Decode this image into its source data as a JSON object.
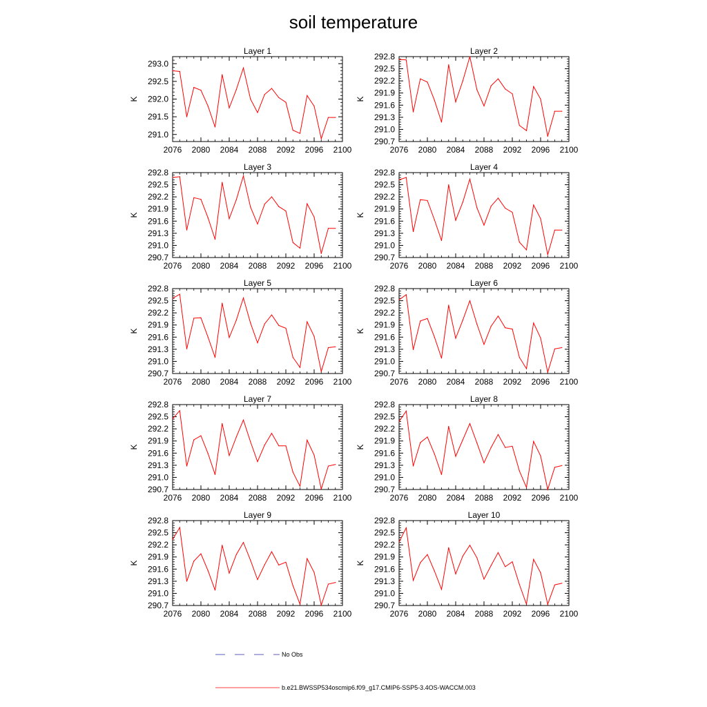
{
  "title": "soil temperature",
  "chart_data": {
    "type": "line",
    "x": [
      2076,
      2077,
      2078,
      2079,
      2080,
      2081,
      2082,
      2083,
      2084,
      2085,
      2086,
      2087,
      2088,
      2089,
      2090,
      2091,
      2092,
      2093,
      2094,
      2095,
      2096,
      2097,
      2098,
      2099
    ],
    "xlim": [
      2076,
      2100
    ],
    "xticks": [
      "2076",
      "2080",
      "2084",
      "2088",
      "2092",
      "2096",
      "2100"
    ],
    "ylabel": "K",
    "series_name": "b.e21.BWSSP534oscmip6.f09_g17.CMIP6-SSP5-3.4OS-WACCM.003",
    "series_color": "#ff0000",
    "obs_label": "No Obs",
    "obs_color": "#2a2aa8",
    "panels": [
      {
        "title": "Layer 1",
        "ylim": [
          290.8,
          293.2
        ],
        "yticks": [
          "291.0",
          "291.5",
          "292.0",
          "292.5",
          "293.0"
        ],
        "values": [
          292.8,
          292.78,
          291.5,
          292.33,
          292.25,
          291.8,
          291.21,
          292.69,
          291.75,
          292.27,
          292.88,
          292.0,
          291.62,
          292.13,
          292.3,
          292.04,
          291.91,
          291.12,
          291.03,
          292.1,
          291.8,
          290.88,
          291.48,
          291.48
        ]
      },
      {
        "title": "Layer 2",
        "ylim": [
          290.7,
          292.8
        ],
        "yticks": [
          "290.7",
          "291.0",
          "291.3",
          "291.6",
          "291.9",
          "292.2",
          "292.5",
          "292.8"
        ],
        "values": [
          292.73,
          292.72,
          291.43,
          292.25,
          292.17,
          291.72,
          291.18,
          292.6,
          291.68,
          292.2,
          292.8,
          291.98,
          291.58,
          292.08,
          292.25,
          292.0,
          291.88,
          291.1,
          290.97,
          292.06,
          291.75,
          290.83,
          291.45,
          291.45
        ]
      },
      {
        "title": "Layer 3",
        "ylim": [
          290.7,
          292.8
        ],
        "yticks": [
          "290.7",
          "291.0",
          "291.3",
          "291.6",
          "291.9",
          "292.2",
          "292.5",
          "292.8"
        ],
        "values": [
          292.68,
          292.7,
          291.38,
          292.18,
          292.14,
          291.68,
          291.15,
          292.56,
          291.66,
          292.13,
          292.72,
          291.95,
          291.53,
          292.02,
          292.2,
          291.96,
          291.85,
          291.07,
          290.93,
          292.03,
          291.7,
          290.8,
          291.42,
          291.42
        ]
      },
      {
        "title": "Layer 4",
        "ylim": [
          290.7,
          292.8
        ],
        "yticks": [
          "290.7",
          "291.0",
          "291.3",
          "291.6",
          "291.9",
          "292.2",
          "292.5",
          "292.8"
        ],
        "values": [
          292.62,
          292.68,
          291.34,
          292.13,
          292.11,
          291.63,
          291.12,
          292.5,
          291.62,
          292.07,
          292.64,
          291.93,
          291.5,
          291.97,
          292.17,
          291.92,
          291.82,
          291.08,
          290.89,
          292.0,
          291.66,
          290.77,
          291.38,
          291.38
        ]
      },
      {
        "title": "Layer 5",
        "ylim": [
          290.7,
          292.8
        ],
        "yticks": [
          "290.7",
          "291.0",
          "291.3",
          "291.6",
          "291.9",
          "292.2",
          "292.5",
          "292.8"
        ],
        "values": [
          292.56,
          292.66,
          291.31,
          292.07,
          292.08,
          291.6,
          291.1,
          292.44,
          291.59,
          292.02,
          292.57,
          291.95,
          291.46,
          291.93,
          292.15,
          291.89,
          291.82,
          291.1,
          290.85,
          291.98,
          291.62,
          290.75,
          291.34,
          291.36
        ]
      },
      {
        "title": "Layer 6",
        "ylim": [
          290.7,
          292.8
        ],
        "yticks": [
          "290.7",
          "291.0",
          "291.3",
          "291.6",
          "291.9",
          "292.2",
          "292.5",
          "292.8"
        ],
        "values": [
          292.52,
          292.65,
          291.29,
          292.0,
          292.06,
          291.6,
          291.08,
          292.39,
          291.57,
          292.02,
          292.5,
          291.92,
          291.42,
          291.87,
          292.12,
          291.83,
          291.8,
          291.1,
          290.82,
          291.95,
          291.58,
          290.73,
          291.31,
          291.34
        ]
      },
      {
        "title": "Layer 7",
        "ylim": [
          290.7,
          292.8
        ],
        "yticks": [
          "290.7",
          "291.0",
          "291.3",
          "291.6",
          "291.9",
          "292.2",
          "292.5",
          "292.8"
        ],
        "values": [
          292.45,
          292.65,
          291.28,
          291.93,
          292.03,
          291.59,
          291.07,
          292.33,
          291.54,
          292.0,
          292.42,
          291.88,
          291.39,
          291.8,
          292.09,
          291.78,
          291.78,
          291.13,
          290.78,
          291.92,
          291.55,
          290.71,
          291.28,
          291.32
        ]
      },
      {
        "title": "Layer 8",
        "ylim": [
          290.7,
          292.8
        ],
        "yticks": [
          "290.7",
          "291.0",
          "291.3",
          "291.6",
          "291.9",
          "292.2",
          "292.5",
          "292.8"
        ],
        "values": [
          292.38,
          292.64,
          291.28,
          291.86,
          292.0,
          291.58,
          291.07,
          292.26,
          291.52,
          291.93,
          292.33,
          291.85,
          291.36,
          291.74,
          292.06,
          291.74,
          291.77,
          291.16,
          290.75,
          291.89,
          291.53,
          290.7,
          291.25,
          291.29
        ]
      },
      {
        "title": "Layer 9",
        "ylim": [
          290.7,
          292.8
        ],
        "yticks": [
          "290.7",
          "291.0",
          "291.3",
          "291.6",
          "291.9",
          "292.2",
          "292.5",
          "292.8"
        ],
        "values": [
          292.33,
          292.63,
          291.3,
          291.8,
          291.98,
          291.56,
          291.08,
          292.19,
          291.5,
          291.96,
          292.26,
          291.82,
          291.34,
          291.71,
          292.03,
          291.7,
          291.77,
          291.19,
          290.73,
          291.86,
          291.52,
          290.71,
          291.23,
          291.27
        ]
      },
      {
        "title": "Layer 10",
        "ylim": [
          290.7,
          292.8
        ],
        "yticks": [
          "290.7",
          "291.0",
          "291.3",
          "291.6",
          "291.9",
          "292.2",
          "292.5",
          "292.8"
        ],
        "values": [
          292.27,
          292.62,
          291.32,
          291.76,
          291.96,
          291.55,
          291.1,
          292.13,
          291.48,
          291.92,
          292.19,
          291.88,
          291.35,
          291.69,
          292.01,
          291.66,
          291.78,
          291.22,
          290.73,
          291.84,
          291.51,
          290.73,
          291.21,
          291.25
        ]
      }
    ]
  }
}
